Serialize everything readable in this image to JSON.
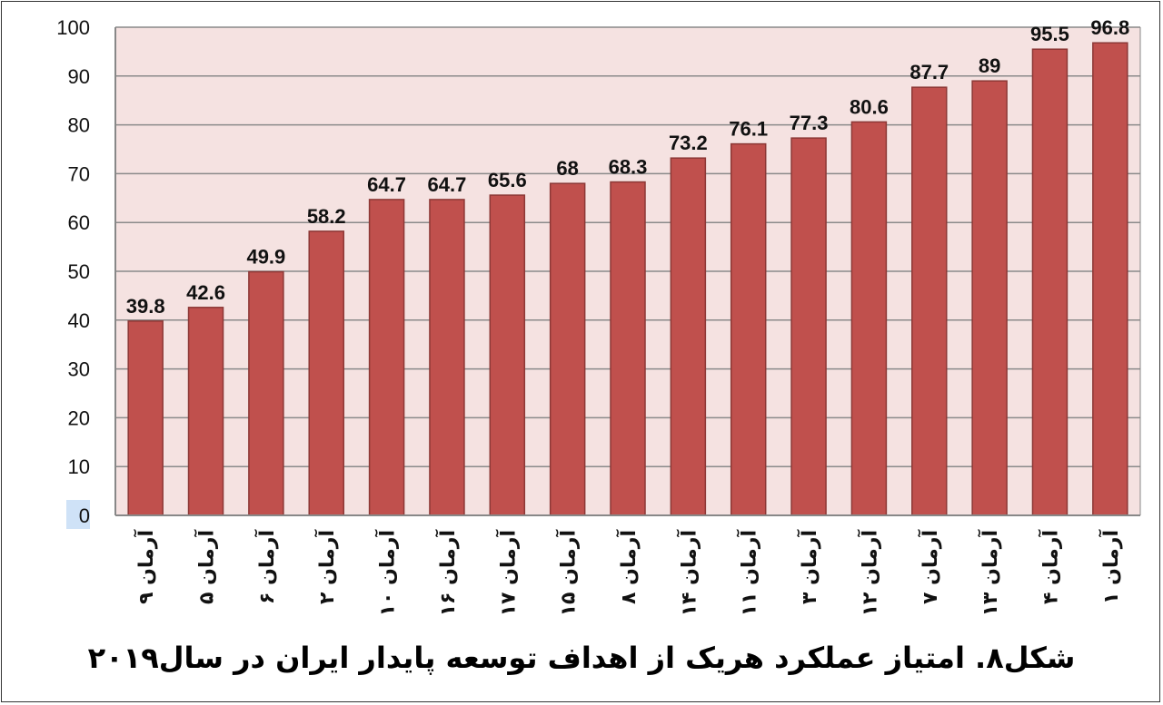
{
  "chart_data": {
    "type": "bar",
    "title": "شکل۸. امتیاز عملکرد هریک از اهداف توسعه پایدار ایران در سال۲۰۱۹",
    "xlabel": "",
    "ylabel": "",
    "ylim": [
      0,
      100
    ],
    "yticks": [
      "0",
      "10",
      "20",
      "30",
      "40",
      "50",
      "60",
      "70",
      "80",
      "90",
      "100"
    ],
    "grid": true,
    "legend": "none",
    "categories": [
      "آرمان ۹",
      "آرمان ۵",
      "آرمان ۶",
      "آرمان ۲",
      "آرمان ۱۰",
      "آرمان ۱۶",
      "آرمان ۱۷",
      "آرمان ۱۵",
      "آرمان ۸",
      "آرمان ۱۴",
      "آرمان ۱۱",
      "آرمان ۳",
      "آرمان ۱۲",
      "آرمان ۷",
      "آرمان ۱۳",
      "آرمان ۴",
      "آرمان ۱"
    ],
    "values": [
      39.8,
      42.6,
      49.9,
      58.2,
      64.7,
      64.7,
      65.6,
      68,
      68.3,
      73.2,
      76.1,
      77.3,
      80.6,
      87.7,
      89,
      95.5,
      96.8
    ],
    "colors": {
      "bar": "#c0504d",
      "bar_border": "#8c3836",
      "plot_background": "#f5e2e1",
      "grid": "#8a8a8a"
    }
  }
}
